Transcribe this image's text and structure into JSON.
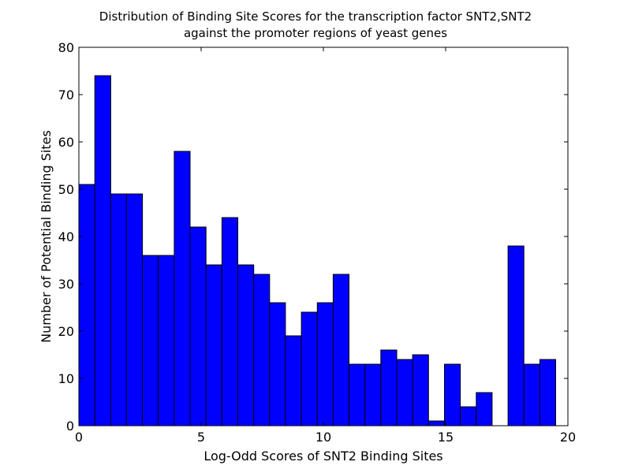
{
  "chart_data": {
    "type": "bar",
    "title_lines": [
      "Distribution of Binding Site Scores for the transcription factor SNT2,SNT2",
      "against the promoter regions of yeast genes"
    ],
    "xlabel": "Log-Odd Scores of SNT2 Binding Sites",
    "ylabel": "Number of Potential Binding Sites",
    "xlim": [
      0,
      20
    ],
    "ylim": [
      0,
      80
    ],
    "xticks": [
      "0",
      "5",
      "10",
      "15",
      "20"
    ],
    "yticks": [
      "0",
      "10",
      "20",
      "30",
      "40",
      "50",
      "60",
      "70",
      "80"
    ],
    "bins": [
      {
        "x0": 0.0,
        "x1": 0.65,
        "value": 51
      },
      {
        "x0": 0.65,
        "x1": 1.3,
        "value": 74
      },
      {
        "x0": 1.3,
        "x1": 1.95,
        "value": 49
      },
      {
        "x0": 1.95,
        "x1": 2.6,
        "value": 49
      },
      {
        "x0": 2.6,
        "x1": 3.25,
        "value": 36
      },
      {
        "x0": 3.25,
        "x1": 3.9,
        "value": 36
      },
      {
        "x0": 3.9,
        "x1": 4.55,
        "value": 58
      },
      {
        "x0": 4.55,
        "x1": 5.2,
        "value": 42
      },
      {
        "x0": 5.2,
        "x1": 5.85,
        "value": 34
      },
      {
        "x0": 5.85,
        "x1": 6.5,
        "value": 44
      },
      {
        "x0": 6.5,
        "x1": 7.15,
        "value": 34
      },
      {
        "x0": 7.15,
        "x1": 7.8,
        "value": 32
      },
      {
        "x0": 7.8,
        "x1": 8.45,
        "value": 26
      },
      {
        "x0": 8.45,
        "x1": 9.1,
        "value": 19
      },
      {
        "x0": 9.1,
        "x1": 9.75,
        "value": 24
      },
      {
        "x0": 9.75,
        "x1": 10.4,
        "value": 26
      },
      {
        "x0": 10.4,
        "x1": 11.05,
        "value": 32
      },
      {
        "x0": 11.05,
        "x1": 11.7,
        "value": 13
      },
      {
        "x0": 11.7,
        "x1": 12.35,
        "value": 13
      },
      {
        "x0": 12.35,
        "x1": 13.0,
        "value": 16
      },
      {
        "x0": 13.0,
        "x1": 13.65,
        "value": 14
      },
      {
        "x0": 13.65,
        "x1": 14.3,
        "value": 15
      },
      {
        "x0": 14.3,
        "x1": 14.95,
        "value": 1
      },
      {
        "x0": 14.95,
        "x1": 15.6,
        "value": 13
      },
      {
        "x0": 15.6,
        "x1": 16.25,
        "value": 4
      },
      {
        "x0": 16.25,
        "x1": 16.9,
        "value": 7
      },
      {
        "x0": 16.9,
        "x1": 17.55,
        "value": 0
      },
      {
        "x0": 17.55,
        "x1": 18.2,
        "value": 38
      },
      {
        "x0": 18.2,
        "x1": 18.85,
        "value": 13
      },
      {
        "x0": 18.85,
        "x1": 19.5,
        "value": 14
      }
    ],
    "grid": false,
    "legend": "none",
    "colors": {
      "bar_fill": "#0000ff",
      "bar_edge": "#000000",
      "axes": "#000000"
    }
  }
}
